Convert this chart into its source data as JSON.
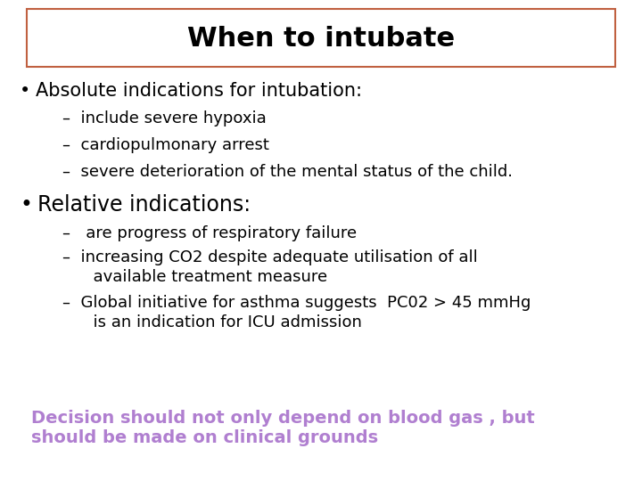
{
  "title": "When to intubate",
  "title_fontsize": 22,
  "title_box_color": "#c06040",
  "background_color": "#ffffff",
  "bullet1": "Absolute indications for intubation:",
  "bullet1_fontsize": 15,
  "sub1": [
    "–  include severe hypoxia",
    "–  cardiopulmonary arrest",
    "–  severe deterioration of the mental status of the child."
  ],
  "sub1_fontsize": 13,
  "bullet2": "Relative indications:",
  "bullet2_fontsize": 17,
  "sub2_line1": "–   are progress of respiratory failure",
  "sub2_line2a": "–  increasing CO2 despite adequate utilisation of all",
  "sub2_line2b": "      available treatment measure",
  "sub2_line3a": "–  Global initiative for asthma suggests  PC02 > 45 mmHg",
  "sub2_line3b": "      is an indication for ICU admission",
  "sub2_fontsize": 13,
  "footer_line1": "Decision should not only depend on blood gas , but",
  "footer_line2": "should be made on clinical grounds",
  "footer_color": "#b07fd0",
  "footer_fontsize": 14
}
